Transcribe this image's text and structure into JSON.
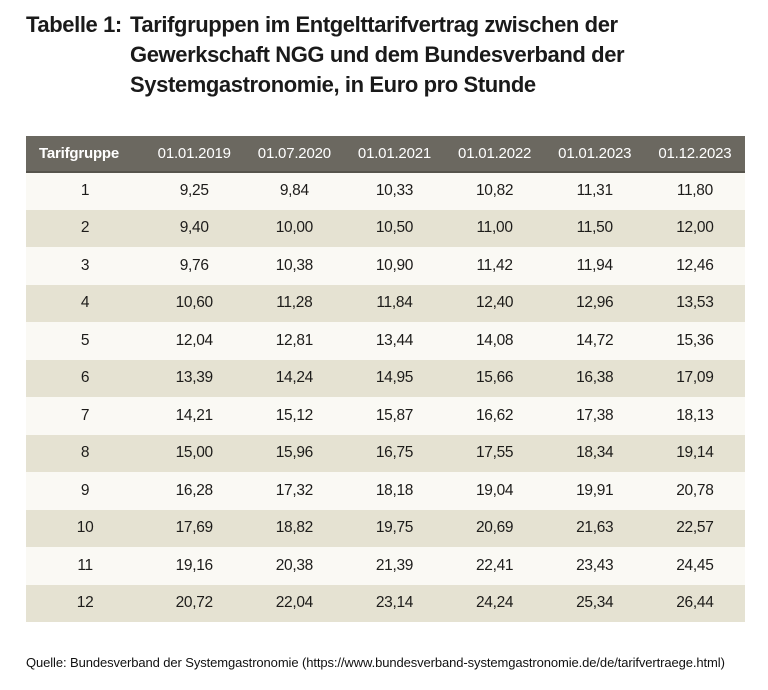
{
  "title": {
    "label": "Tabelle 1:",
    "line1": "Tarifgruppen im Entgelttarifvertrag zwischen der",
    "line2": "Gewerkschaft NGG und dem Bundesverband der",
    "line3": "Systemgastronomie, in Euro pro Stunde"
  },
  "table": {
    "columns": [
      "Tarifgruppe",
      "01.01.2019",
      "01.07.2020",
      "01.01.2021",
      "01.01.2022",
      "01.01.2023",
      "01.12.2023"
    ],
    "rows": [
      {
        "group": "1",
        "values": [
          "9,25",
          "9,84",
          "10,33",
          "10,82",
          "11,31",
          "11,80"
        ]
      },
      {
        "group": "2",
        "values": [
          "9,40",
          "10,00",
          "10,50",
          "11,00",
          "11,50",
          "12,00"
        ]
      },
      {
        "group": "3",
        "values": [
          "9,76",
          "10,38",
          "10,90",
          "11,42",
          "11,94",
          "12,46"
        ]
      },
      {
        "group": "4",
        "values": [
          "10,60",
          "11,28",
          "11,84",
          "12,40",
          "12,96",
          "13,53"
        ]
      },
      {
        "group": "5",
        "values": [
          "12,04",
          "12,81",
          "13,44",
          "14,08",
          "14,72",
          "15,36"
        ]
      },
      {
        "group": "6",
        "values": [
          "13,39",
          "14,24",
          "14,95",
          "15,66",
          "16,38",
          "17,09"
        ]
      },
      {
        "group": "7",
        "values": [
          "14,21",
          "15,12",
          "15,87",
          "16,62",
          "17,38",
          "18,13"
        ]
      },
      {
        "group": "8",
        "values": [
          "15,00",
          "15,96",
          "16,75",
          "17,55",
          "18,34",
          "19,14"
        ]
      },
      {
        "group": "9",
        "values": [
          "16,28",
          "17,32",
          "18,18",
          "19,04",
          "19,91",
          "20,78"
        ]
      },
      {
        "group": "10",
        "values": [
          "17,69",
          "18,82",
          "19,75",
          "20,69",
          "21,63",
          "22,57"
        ]
      },
      {
        "group": "11",
        "values": [
          "19,16",
          "20,38",
          "21,39",
          "22,41",
          "23,43",
          "24,45"
        ]
      },
      {
        "group": "12",
        "values": [
          "20,72",
          "22,04",
          "23,14",
          "24,24",
          "25,34",
          "26,44"
        ]
      }
    ]
  },
  "chart_data": {
    "type": "table",
    "title": "Tabelle 1: Tarifgruppen im Entgelttarifvertrag zwischen der Gewerkschaft NGG und dem Bundesverband der Systemgastronomie, in Euro pro Stunde",
    "unit": "Euro pro Stunde",
    "categories": [
      "01.01.2019",
      "01.07.2020",
      "01.01.2021",
      "01.01.2022",
      "01.01.2023",
      "01.12.2023"
    ],
    "series": [
      {
        "name": "Tarifgruppe 1",
        "values": [
          9.25,
          9.84,
          10.33,
          10.82,
          11.31,
          11.8
        ]
      },
      {
        "name": "Tarifgruppe 2",
        "values": [
          9.4,
          10.0,
          10.5,
          11.0,
          11.5,
          12.0
        ]
      },
      {
        "name": "Tarifgruppe 3",
        "values": [
          9.76,
          10.38,
          10.9,
          11.42,
          11.94,
          12.46
        ]
      },
      {
        "name": "Tarifgruppe 4",
        "values": [
          10.6,
          11.28,
          11.84,
          12.4,
          12.96,
          13.53
        ]
      },
      {
        "name": "Tarifgruppe 5",
        "values": [
          12.04,
          12.81,
          13.44,
          14.08,
          14.72,
          15.36
        ]
      },
      {
        "name": "Tarifgruppe 6",
        "values": [
          13.39,
          14.24,
          14.95,
          15.66,
          16.38,
          17.09
        ]
      },
      {
        "name": "Tarifgruppe 7",
        "values": [
          14.21,
          15.12,
          15.87,
          16.62,
          17.38,
          18.13
        ]
      },
      {
        "name": "Tarifgruppe 8",
        "values": [
          15.0,
          15.96,
          16.75,
          17.55,
          18.34,
          19.14
        ]
      },
      {
        "name": "Tarifgruppe 9",
        "values": [
          16.28,
          17.32,
          18.18,
          19.04,
          19.91,
          20.78
        ]
      },
      {
        "name": "Tarifgruppe 10",
        "values": [
          17.69,
          18.82,
          19.75,
          20.69,
          21.63,
          22.57
        ]
      },
      {
        "name": "Tarifgruppe 11",
        "values": [
          19.16,
          20.38,
          21.39,
          22.41,
          23.43,
          24.45
        ]
      },
      {
        "name": "Tarifgruppe 12",
        "values": [
          20.72,
          22.04,
          23.14,
          24.24,
          25.34,
          26.44
        ]
      }
    ]
  },
  "source": "Quelle: Bundesverband der Systemgastronomie (https://www.bundesverband-systemgastronomie.de/de/tarifvertraege.html)",
  "colors": {
    "header_bg": "#6b6860",
    "header_border": "#56544c",
    "row_odd": "#faf9f4",
    "row_even": "#e5e2d2",
    "text": "#1d1c1a"
  }
}
